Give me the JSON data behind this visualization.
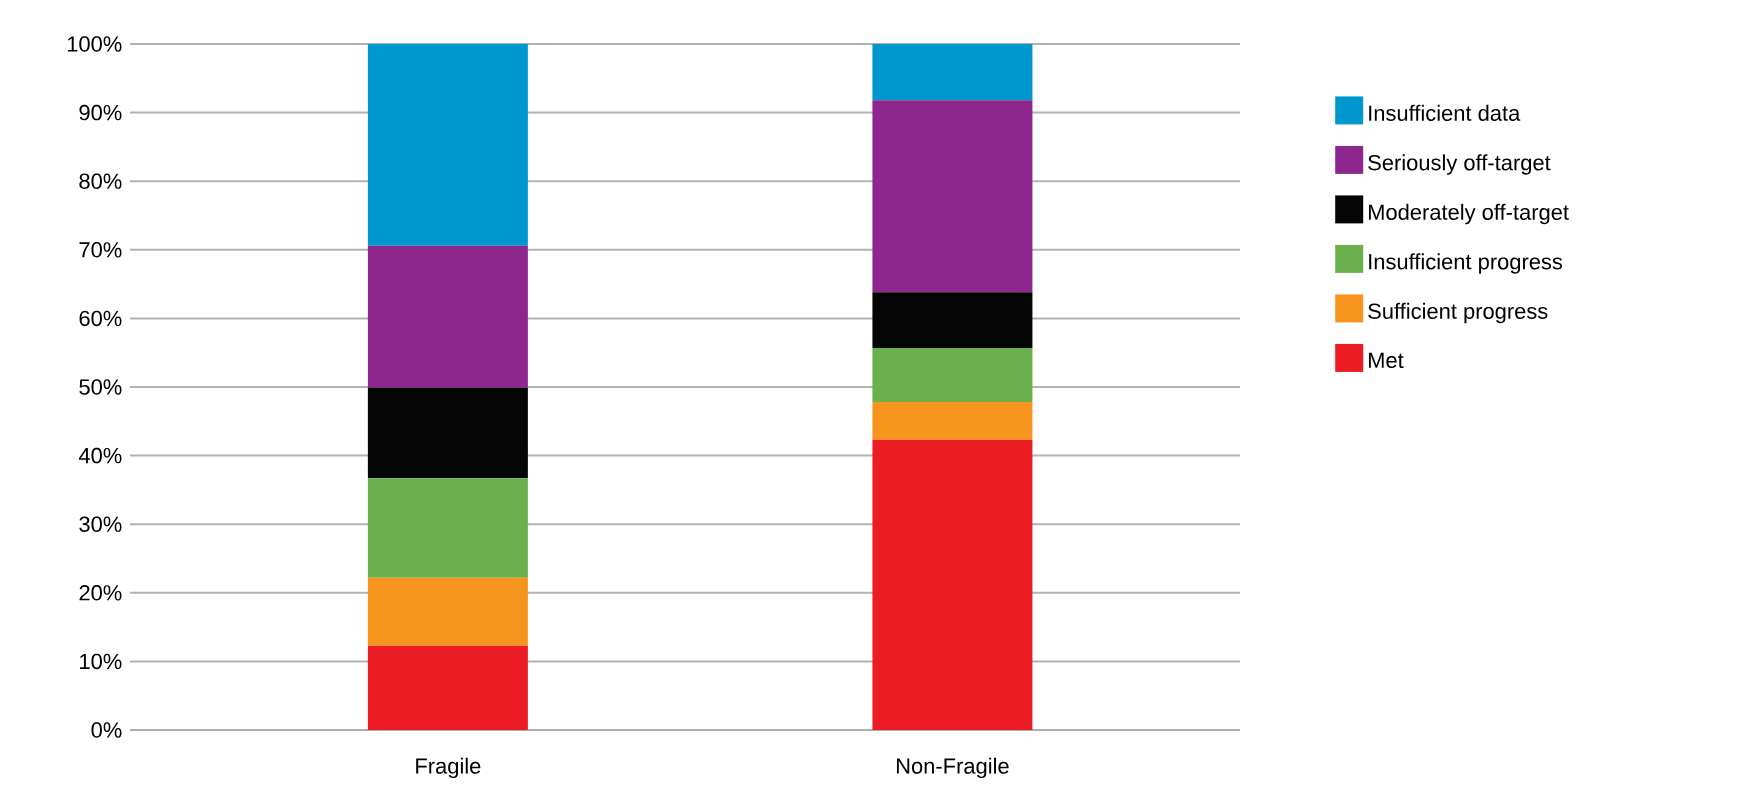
{
  "chart_data": {
    "type": "bar",
    "stacked": true,
    "categories": [
      "Fragile",
      "Non-Fragile"
    ],
    "series": [
      {
        "name": "Met",
        "color": "#ed1c24",
        "values": [
          12.3,
          42.3
        ]
      },
      {
        "name": "Sufficient progress",
        "color": "#f7941d",
        "values": [
          9.9,
          5.5
        ]
      },
      {
        "name": "Insufficient progress",
        "color": "#6ab04c",
        "values": [
          14.5,
          7.9
        ]
      },
      {
        "name": "Moderately off-target",
        "color": "#050505",
        "values": [
          13.2,
          8.1
        ]
      },
      {
        "name": "Seriously off-target",
        "color": "#8e278d",
        "values": [
          20.7,
          28.0
        ]
      },
      {
        "name": "Insufficient data",
        "color": "#0097cf",
        "values": [
          29.4,
          8.2
        ]
      }
    ],
    "ylim": [
      0,
      100
    ],
    "yticks": [
      {
        "value": 0,
        "label": "0%"
      },
      {
        "value": 10,
        "label": "10%"
      },
      {
        "value": 20,
        "label": "20%"
      },
      {
        "value": 30,
        "label": "30%"
      },
      {
        "value": 40,
        "label": "40%"
      },
      {
        "value": 50,
        "label": "50%"
      },
      {
        "value": 60,
        "label": "60%"
      },
      {
        "value": 70,
        "label": "70%"
      },
      {
        "value": 80,
        "label": "80%"
      },
      {
        "value": 90,
        "label": "90%"
      },
      {
        "value": 100,
        "label": "100%"
      }
    ],
    "grid": "y",
    "legend": "right"
  }
}
